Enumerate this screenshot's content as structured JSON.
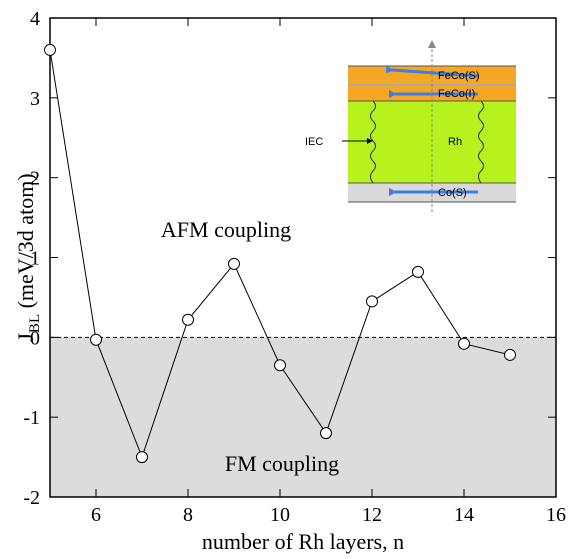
{
  "chart_data": {
    "type": "line",
    "x": [
      5,
      6,
      7,
      8,
      9,
      10,
      11,
      12,
      13,
      14,
      15
    ],
    "series": [
      {
        "color": "#000000",
        "values": [
          3.6,
          -0.03,
          -1.5,
          0.22,
          0.92,
          -0.35,
          -1.2,
          0.45,
          0.82,
          -0.08,
          -0.22
        ]
      }
    ],
    "xlim": [
      5,
      16
    ],
    "xticks": [
      6,
      8,
      10,
      12,
      14,
      16
    ],
    "ylim": [
      -2,
      4
    ],
    "yticks": [
      -2,
      -1,
      0,
      1,
      2,
      3,
      4
    ],
    "x_label": "number of Rh layers, n",
    "y_label": [
      "J",
      "BL",
      " (meV/3d atom)"
    ],
    "annotations": [
      "AFM coupling",
      "FM coupling"
    ],
    "shade_below_zero": "#dcdcdc",
    "inset_labels": [
      "FeCo(S)",
      "FeCo(I)",
      "Rh",
      "IEC",
      "Co(S)"
    ]
  }
}
